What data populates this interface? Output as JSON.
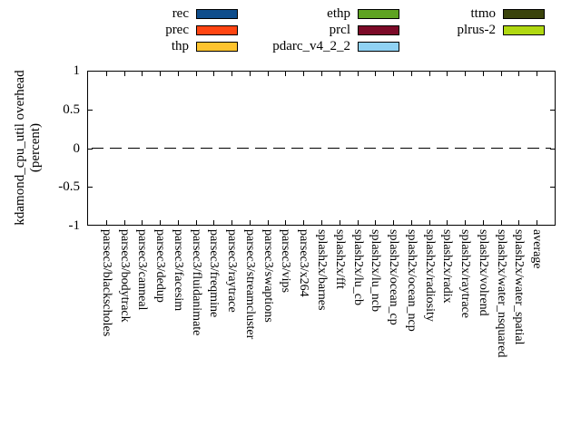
{
  "legend": {
    "entries": [
      {
        "label": "rec",
        "color": "#0e4d8c"
      },
      {
        "label": "prec",
        "color": "#ff4512"
      },
      {
        "label": "thp",
        "color": "#ffc42e"
      },
      {
        "label": "ethp",
        "color": "#5ea321"
      },
      {
        "label": "prcl",
        "color": "#7c0a28"
      },
      {
        "label": "pdarc_v4_2_2",
        "color": "#90d2f4"
      },
      {
        "label": "ttmo",
        "color": "#3a430b"
      },
      {
        "label": "plrus-2",
        "color": "#b0d811"
      }
    ]
  },
  "y_axis": {
    "title_line1": "kdamond_cpu_util overhead",
    "title_line2": "(percent)",
    "ticks": [
      "1",
      "0.5",
      "0",
      "-0.5",
      "-1"
    ]
  },
  "x_axis": {
    "categories": [
      "parsec3/blackscholes",
      "parsec3/bodytrack",
      "parsec3/canneal",
      "parsec3/dedup",
      "parsec3/facesim",
      "parsec3/fluidanimate",
      "parsec3/freqmine",
      "parsec3/raytrace",
      "parsec3/streamcluster",
      "parsec3/swaptions",
      "parsec3/vips",
      "parsec3/x264",
      "splash2x/barnes",
      "splash2x/fft",
      "splash2x/lu_cb",
      "splash2x/lu_ncb",
      "splash2x/ocean_cp",
      "splash2x/ocean_ncp",
      "splash2x/radiosity",
      "splash2x/radix",
      "splash2x/raytrace",
      "splash2x/volrend",
      "splash2x/water_nsquared",
      "splash2x/water_spatial",
      "average"
    ]
  },
  "chart_data": {
    "type": "bar",
    "title": "",
    "xlabel": "",
    "ylabel": "kdamond_cpu_util overhead (percent)",
    "ylim": [
      -1,
      1
    ],
    "ytick_step": 0.5,
    "grid": false,
    "legend_position": "top",
    "zero_line_style": "dashed-black",
    "categories": [
      "parsec3/blackscholes",
      "parsec3/bodytrack",
      "parsec3/canneal",
      "parsec3/dedup",
      "parsec3/facesim",
      "parsec3/fluidanimate",
      "parsec3/freqmine",
      "parsec3/raytrace",
      "parsec3/streamcluster",
      "parsec3/swaptions",
      "parsec3/vips",
      "parsec3/x264",
      "splash2x/barnes",
      "splash2x/fft",
      "splash2x/lu_cb",
      "splash2x/lu_ncb",
      "splash2x/ocean_cp",
      "splash2x/ocean_ncp",
      "splash2x/radiosity",
      "splash2x/radix",
      "splash2x/raytrace",
      "splash2x/volrend",
      "splash2x/water_nsquared",
      "splash2x/water_spatial",
      "average"
    ],
    "series": [
      {
        "name": "rec",
        "color": "#0e4d8c",
        "values": [
          0,
          0,
          0,
          0,
          0,
          0,
          0,
          0,
          0,
          0,
          0,
          0,
          0,
          0,
          0,
          0,
          0,
          0,
          0,
          0,
          0,
          0,
          0,
          0,
          0
        ]
      },
      {
        "name": "prec",
        "color": "#ff4512",
        "values": [
          0,
          0,
          0,
          0,
          0,
          0,
          0,
          0,
          0,
          0,
          0,
          0,
          0,
          0,
          0,
          0,
          0,
          0,
          0,
          0,
          0,
          0,
          0,
          0,
          0
        ]
      },
      {
        "name": "thp",
        "color": "#ffc42e",
        "values": [
          0,
          0,
          0,
          0,
          0,
          0,
          0,
          0,
          0,
          0,
          0,
          0,
          0,
          0,
          0,
          0,
          0,
          0,
          0,
          0,
          0,
          0,
          0,
          0,
          0
        ]
      },
      {
        "name": "ethp",
        "color": "#5ea321",
        "values": [
          0,
          0,
          0,
          0,
          0,
          0,
          0,
          0,
          0,
          0,
          0,
          0,
          0,
          0,
          0,
          0,
          0,
          0,
          0,
          0,
          0,
          0,
          0,
          0,
          0
        ]
      },
      {
        "name": "prcl",
        "color": "#7c0a28",
        "values": [
          0,
          0,
          0,
          0,
          0,
          0,
          0,
          0,
          0,
          0,
          0,
          0,
          0,
          0,
          0,
          0,
          0,
          0,
          0,
          0,
          0,
          0,
          0,
          0,
          0
        ]
      },
      {
        "name": "pdarc_v4_2_2",
        "color": "#90d2f4",
        "values": [
          0,
          0,
          0,
          0,
          0,
          0,
          0,
          0,
          0,
          0,
          0,
          0,
          0,
          0,
          0,
          0,
          0,
          0,
          0,
          0,
          0,
          0,
          0,
          0,
          0
        ]
      },
      {
        "name": "ttmo",
        "color": "#3a430b",
        "values": [
          0,
          0,
          0,
          0,
          0,
          0,
          0,
          0,
          0,
          0,
          0,
          0,
          0,
          0,
          0,
          0,
          0,
          0,
          0,
          0,
          0,
          0,
          0,
          0,
          0
        ]
      },
      {
        "name": "plrus-2",
        "color": "#b0d811",
        "values": [
          0,
          0,
          0,
          0,
          0,
          0,
          0,
          0,
          0,
          0,
          0,
          0,
          0,
          0,
          0,
          0,
          0,
          0,
          0,
          0,
          0,
          0,
          0,
          0,
          0
        ]
      }
    ]
  }
}
